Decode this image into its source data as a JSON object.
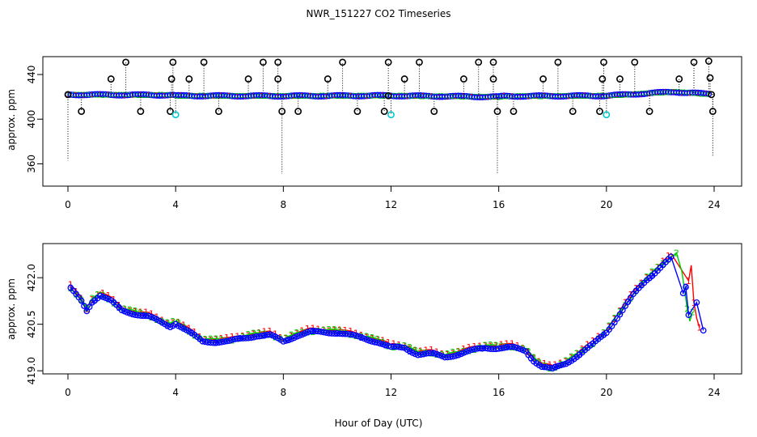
{
  "chart_data": {
    "title": "NWR_151227  CO2 Timeseries",
    "xlabel": "Hour of Day (UTC)",
    "panels": [
      {
        "type": "scatter",
        "ylabel": "approx. ppm",
        "xlim": [
          0,
          24
        ],
        "ylim": [
          340,
          456
        ],
        "xticks": [
          0,
          4,
          8,
          12,
          16,
          20,
          24
        ],
        "yticks": [
          360,
          400,
          440
        ],
        "baseline": [
          [
            0,
            422.0
          ],
          [
            3.9,
            421.6
          ],
          [
            4.0,
            421.0
          ],
          [
            8,
            420.8
          ],
          [
            11.9,
            421.1
          ],
          [
            12.1,
            421.0
          ],
          [
            16,
            420.0
          ],
          [
            16.2,
            420.6
          ],
          [
            20,
            421.0
          ],
          [
            22.5,
            424.5
          ],
          [
            23.8,
            422.5
          ]
        ],
        "point_spacing_hours": 0.1,
        "series": [
          {
            "name": "",
            "color": "#0000ff",
            "marker": "circle"
          },
          {
            "name": "",
            "color": "#00cc00",
            "marker": "digit 2"
          },
          {
            "name": "",
            "color": "#ff0000",
            "marker": "digit 1"
          }
        ],
        "outliers": [
          {
            "x": 0.0,
            "y": 422,
            "low": 363,
            "color": "#000000"
          },
          {
            "x": 0.5,
            "y": 407,
            "color": "#000000"
          },
          {
            "x": 1.6,
            "y": 436,
            "color": "#000000"
          },
          {
            "x": 2.15,
            "y": 451,
            "color": "#000000"
          },
          {
            "x": 2.7,
            "y": 407,
            "color": "#000000"
          },
          {
            "x": 3.8,
            "y": 407,
            "color": "#000000"
          },
          {
            "x": 3.85,
            "y": 436,
            "color": "#000000"
          },
          {
            "x": 3.9,
            "y": 451,
            "color": "#000000"
          },
          {
            "x": 4.0,
            "y": 404,
            "color": "#00cccc"
          },
          {
            "x": 4.5,
            "y": 436,
            "color": "#000000"
          },
          {
            "x": 5.05,
            "y": 451,
            "color": "#000000"
          },
          {
            "x": 5.6,
            "y": 407,
            "color": "#000000"
          },
          {
            "x": 6.7,
            "y": 436,
            "color": "#000000"
          },
          {
            "x": 7.25,
            "y": 451,
            "color": "#000000"
          },
          {
            "x": 7.8,
            "y": 451,
            "color": "#000000"
          },
          {
            "x": 7.8,
            "y": 436,
            "color": "#000000"
          },
          {
            "x": 7.95,
            "y": 407,
            "low": 351,
            "color": "#000000"
          },
          {
            "x": 8.55,
            "y": 407,
            "color": "#000000"
          },
          {
            "x": 9.65,
            "y": 436,
            "color": "#000000"
          },
          {
            "x": 10.2,
            "y": 451,
            "color": "#000000"
          },
          {
            "x": 10.75,
            "y": 407,
            "color": "#000000"
          },
          {
            "x": 11.75,
            "y": 407,
            "color": "#000000"
          },
          {
            "x": 11.9,
            "y": 451,
            "color": "#000000"
          },
          {
            "x": 11.9,
            "y": 421,
            "color": "#000000"
          },
          {
            "x": 12.0,
            "y": 404,
            "color": "#00cccc"
          },
          {
            "x": 12.5,
            "y": 436,
            "color": "#000000"
          },
          {
            "x": 13.05,
            "y": 451,
            "color": "#000000"
          },
          {
            "x": 13.6,
            "y": 407,
            "color": "#000000"
          },
          {
            "x": 14.7,
            "y": 436,
            "color": "#000000"
          },
          {
            "x": 15.25,
            "y": 451,
            "color": "#000000"
          },
          {
            "x": 15.8,
            "y": 451,
            "color": "#000000"
          },
          {
            "x": 15.8,
            "y": 436,
            "color": "#000000"
          },
          {
            "x": 15.95,
            "y": 407,
            "low": 351,
            "color": "#000000"
          },
          {
            "x": 16.55,
            "y": 407,
            "color": "#000000"
          },
          {
            "x": 17.65,
            "y": 436,
            "color": "#000000"
          },
          {
            "x": 18.2,
            "y": 451,
            "color": "#000000"
          },
          {
            "x": 18.75,
            "y": 407,
            "color": "#000000"
          },
          {
            "x": 19.75,
            "y": 407,
            "color": "#000000"
          },
          {
            "x": 19.85,
            "y": 436,
            "color": "#000000"
          },
          {
            "x": 19.9,
            "y": 451,
            "color": "#000000"
          },
          {
            "x": 20.0,
            "y": 404,
            "color": "#00cccc"
          },
          {
            "x": 20.5,
            "y": 436,
            "color": "#000000"
          },
          {
            "x": 21.05,
            "y": 451,
            "color": "#000000"
          },
          {
            "x": 21.6,
            "y": 407,
            "color": "#000000"
          },
          {
            "x": 22.7,
            "y": 436,
            "color": "#000000"
          },
          {
            "x": 23.25,
            "y": 451,
            "color": "#000000"
          },
          {
            "x": 23.8,
            "y": 452,
            "color": "#000000"
          },
          {
            "x": 23.85,
            "y": 437,
            "color": "#000000"
          },
          {
            "x": 23.9,
            "y": 422,
            "color": "#000000"
          },
          {
            "x": 23.95,
            "y": 407,
            "low": 366,
            "color": "#000000"
          }
        ]
      },
      {
        "type": "line",
        "ylabel": "approx. ppm",
        "xlim": [
          0,
          24
        ],
        "ylim": [
          418.9,
          423.1
        ],
        "xticks": [
          0,
          4,
          8,
          12,
          16,
          20,
          24
        ],
        "yticks": [
          419.0,
          420.5,
          422.0
        ],
        "ytick_labels": [
          "419.0",
          "420.5",
          "422.0"
        ],
        "point_spacing_hours": 0.1,
        "gaps_at_hours": [
          4,
          8,
          12,
          16,
          20
        ],
        "series": [
          {
            "name": "",
            "marker": "digit 1",
            "color": "#ff0000",
            "offset": 0.04,
            "extra_points": [
              [
                23.05,
                421.9
              ],
              [
                23.15,
                422.4
              ],
              [
                23.25,
                421.2
              ],
              [
                23.35,
                420.7
              ],
              [
                23.45,
                420.4
              ]
            ]
          },
          {
            "name": "",
            "marker": "digit 2",
            "color": "#00cc00",
            "offset": 0.0,
            "extra_points": [
              [
                22.6,
                422.8
              ],
              [
                22.8,
                422.2
              ],
              [
                23.0,
                421.0
              ],
              [
                23.1,
                420.6
              ],
              [
                23.2,
                420.9
              ]
            ]
          },
          {
            "name": "",
            "marker": "digit 3 / circle",
            "color": "#0000ff",
            "offset": -0.06,
            "extra_points": [
              [
                22.85,
                421.5
              ],
              [
                22.95,
                421.7
              ],
              [
                23.05,
                420.8
              ],
              [
                23.35,
                421.2
              ],
              [
                23.6,
                420.3
              ]
            ]
          }
        ],
        "shape_x": [
          0.1,
          0.3,
          0.5,
          0.7,
          0.9,
          1.2,
          1.6,
          2.0,
          2.5,
          3.0,
          3.5,
          3.8,
          4.0,
          4.5,
          5.0,
          5.5,
          6.0,
          6.5,
          7.0,
          7.5,
          8.0,
          8.5,
          9.0,
          9.5,
          10.0,
          10.5,
          11.0,
          11.5,
          12.0,
          12.5,
          13.0,
          13.5,
          14.0,
          14.5,
          15.0,
          15.5,
          16.0,
          16.5,
          17.0,
          17.3,
          17.6,
          18.0,
          18.5,
          19.0,
          19.5,
          20.0,
          20.5,
          21.0,
          21.5,
          22.0,
          22.4
        ],
        "shape_y": [
          421.7,
          421.5,
          421.3,
          421.0,
          421.3,
          421.5,
          421.3,
          421.0,
          420.9,
          420.8,
          420.6,
          420.5,
          420.6,
          420.3,
          420.0,
          420.0,
          420.0,
          420.1,
          420.2,
          420.2,
          420.0,
          420.2,
          420.3,
          420.3,
          420.3,
          420.2,
          420.1,
          420.0,
          419.8,
          419.8,
          419.6,
          419.6,
          419.5,
          419.6,
          419.7,
          419.8,
          419.8,
          419.8,
          419.7,
          419.4,
          419.2,
          419.1,
          419.3,
          419.6,
          419.9,
          420.3,
          420.9,
          421.5,
          422.0,
          422.4,
          422.7
        ]
      }
    ]
  }
}
